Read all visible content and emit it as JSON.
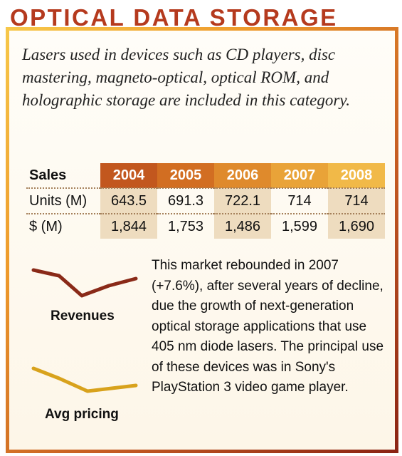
{
  "title": "OPTICAL DATA STORAGE",
  "intro": "Lasers used in devices such as CD players, disc mastering, magneto-optical, optical ROM, and holographic storage are included in this category.",
  "colors": {
    "title": "#b53a1e",
    "revenues_line": "#8a2a18",
    "pricing_line": "#d8a21c"
  },
  "table": {
    "header_label": "Sales",
    "years": [
      "2004",
      "2005",
      "2006",
      "2007",
      "2008"
    ],
    "rows": [
      {
        "label": "Units (M)",
        "values": [
          "643.5",
          "691.3",
          "722.1",
          "714",
          "714"
        ]
      },
      {
        "label": "$ (M)",
        "values": [
          "1,844",
          "1,753",
          "1,486",
          "1,599",
          "1,690"
        ]
      }
    ]
  },
  "legend": {
    "revenues": "Revenues",
    "avg_pricing": "Avg pricing"
  },
  "body": "This market rebounded in 2007 (+7.6%), after several years of decline, due the growth of next-generation optical storage applications that use 405 nm diode lasers. The principal use of these devices was in Sony's PlayStation 3 video game player."
}
